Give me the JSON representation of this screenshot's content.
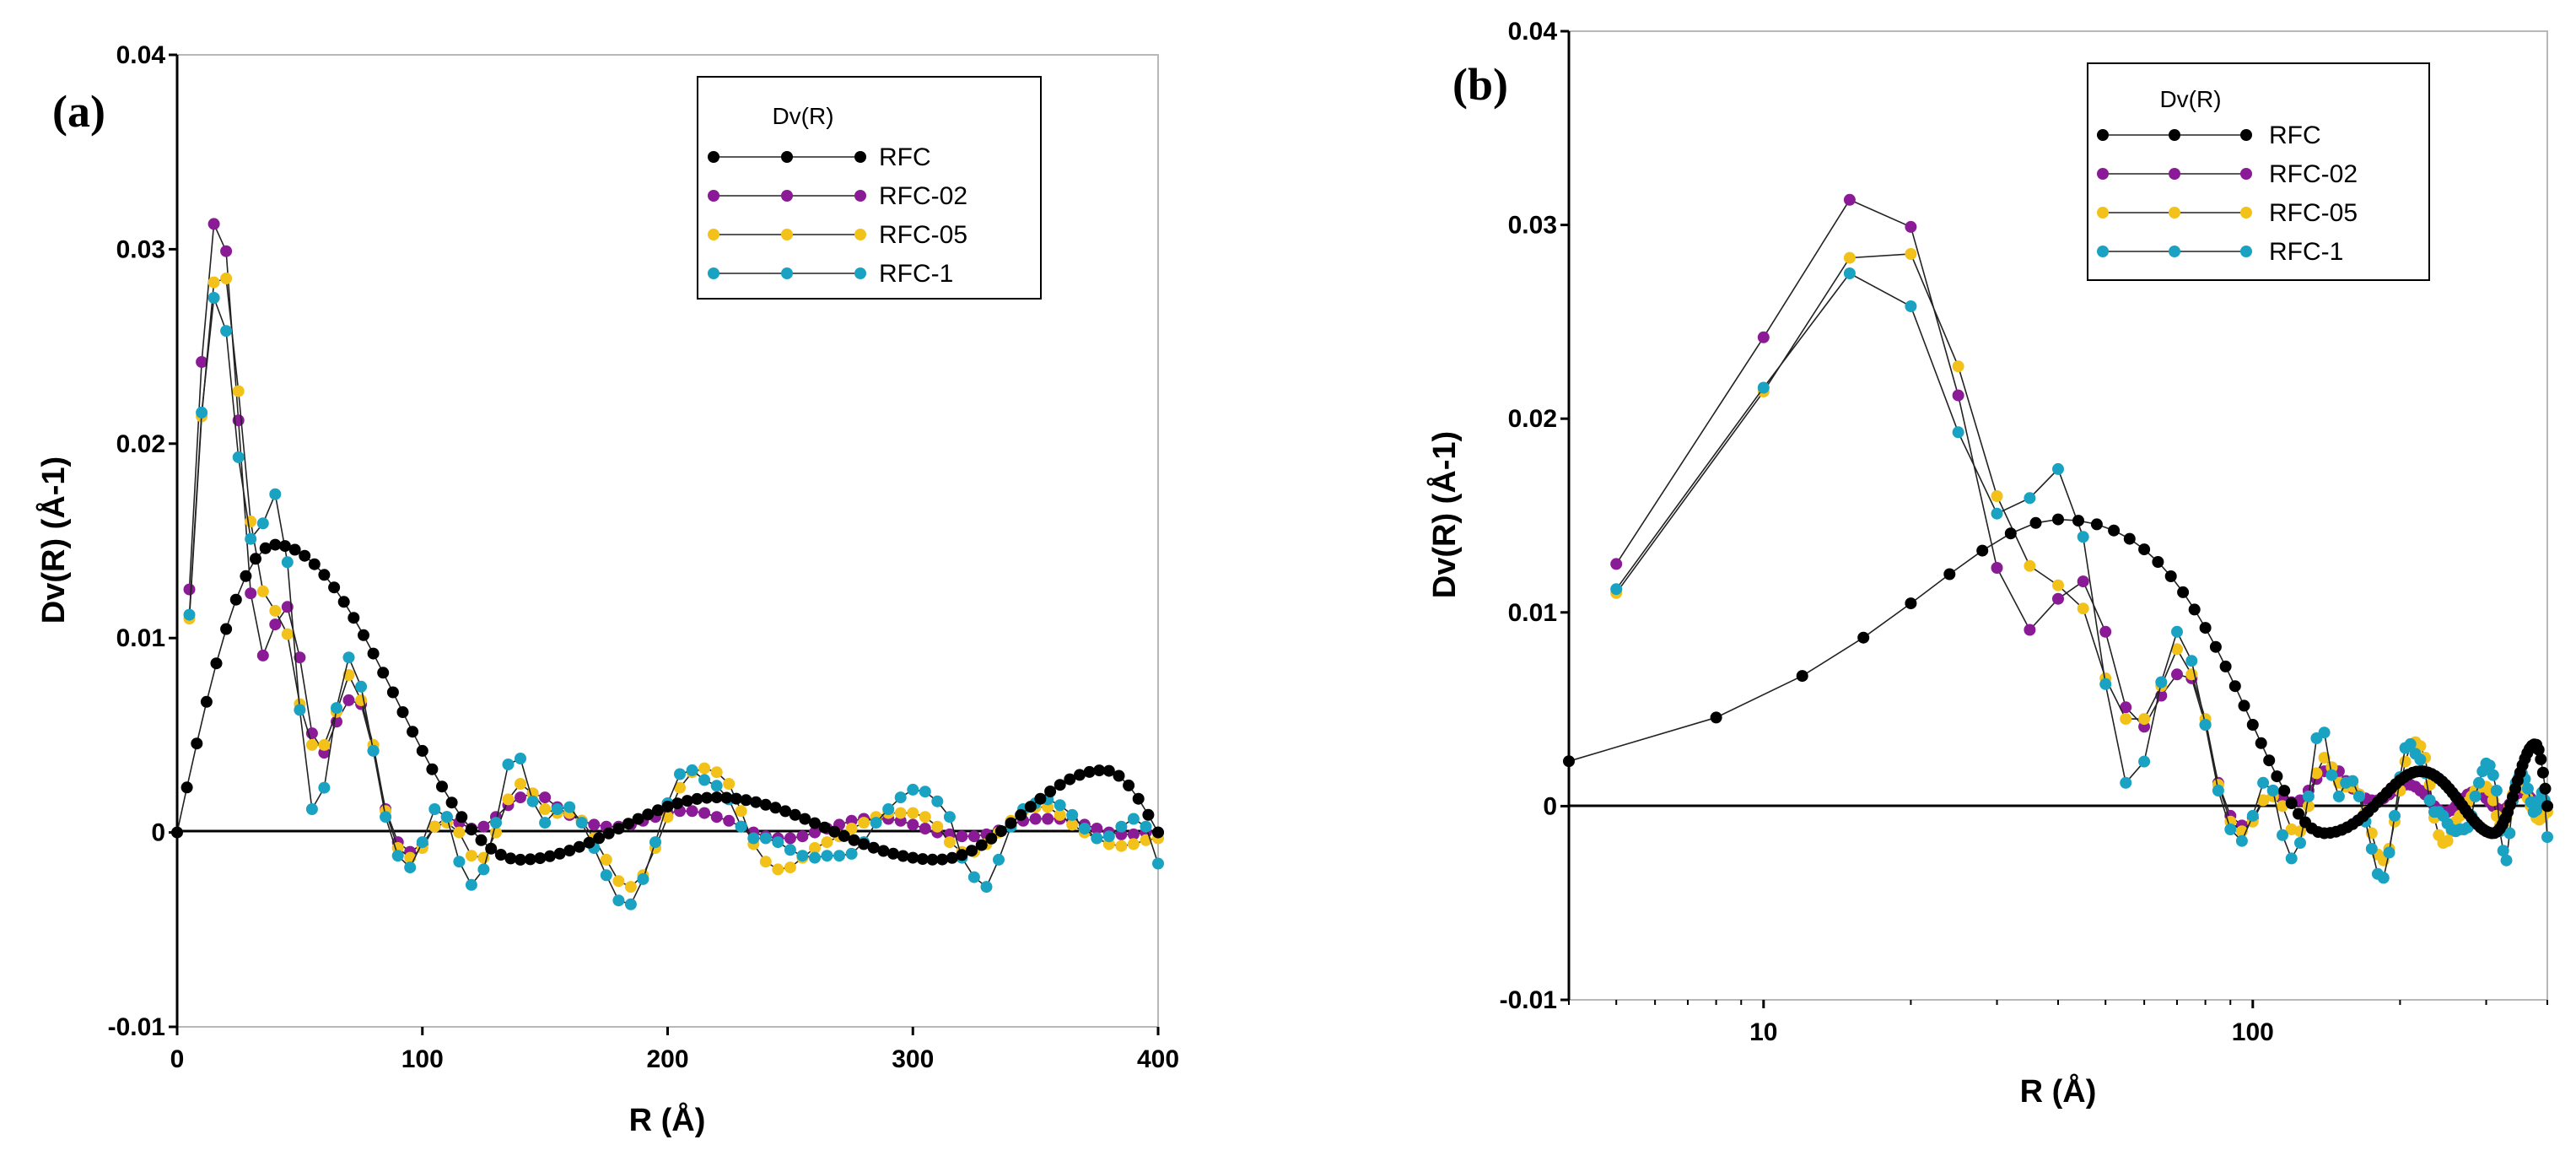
{
  "chart_data": [
    {
      "type": "line",
      "panel_label": "(a)",
      "xscale": "linear",
      "xlabel": "R (Å)",
      "ylabel": "Dv(R) (Å-1)",
      "xlim": [
        0,
        400
      ],
      "ylim": [
        -0.01,
        0.04
      ],
      "xticks": [
        0,
        100,
        200,
        300,
        400
      ],
      "xtick_labels": [
        "0",
        "100",
        "200",
        "300",
        "400"
      ],
      "yticks": [
        -0.01,
        0,
        0.01,
        0.02,
        0.03,
        0.04
      ],
      "ytick_labels": [
        "-0.01",
        "0",
        "0.01",
        "0.02",
        "0.03",
        "0.04"
      ],
      "grid": false,
      "legend": {
        "title": "Dv(R)",
        "position": "top-right"
      },
      "series": [
        {
          "name": "RFC",
          "color": "#000000",
          "generator": "rfc",
          "x_start": 0,
          "x_step": 4,
          "n": 101
        },
        {
          "name": "RFC-02",
          "color": "#8b1a96",
          "x": [
            5,
            10,
            15,
            20,
            25,
            30,
            35,
            40,
            45,
            50,
            55,
            60,
            65,
            70,
            75,
            80,
            85,
            90,
            95,
            100,
            105,
            110,
            115,
            120,
            125,
            130,
            135,
            140,
            145,
            150,
            155,
            160,
            165,
            170,
            175,
            180,
            185,
            190,
            195,
            200,
            205,
            210,
            215,
            220,
            225,
            230,
            235,
            240,
            245,
            250,
            255,
            260,
            265,
            270,
            275,
            280,
            285,
            290,
            295,
            300,
            305,
            310,
            315,
            320,
            325,
            330,
            335,
            340,
            345,
            350,
            355,
            360,
            365,
            370,
            375,
            380,
            385,
            390,
            395,
            400
          ],
          "y": [
            0.0125,
            0.0242,
            0.0313,
            0.0299,
            0.0212,
            0.0123,
            0.0091,
            0.0107,
            0.0116,
            0.009,
            0.0051,
            0.0041,
            0.0057,
            0.0068,
            0.0066,
            0.0042,
            0.0012,
            -0.0005,
            -0.001,
            -0.0006,
            0.0003,
            0.0008,
            0.0005,
            0.0002,
            0.0003,
            0.0008,
            0.0014,
            0.0018,
            0.002,
            0.0018,
            0.0013,
            0.0009,
            0.0006,
            0.0004,
            0.0003,
            0.0003,
            0.0004,
            0.0006,
            0.0008,
            0.001,
            0.0011,
            0.0011,
            0.001,
            0.0008,
            0.0006,
            0.0003,
            0,
            -0.0002,
            -0.0003,
            -0.0003,
            -0.0002,
            0,
            0.0002,
            0.0004,
            0.0006,
            0.0007,
            0.0007,
            0.0007,
            0.0006,
            0.0004,
            0.0002,
            0,
            -0.0001,
            -0.0002,
            -0.0002,
            -0.0001,
            0.0001,
            0.0004,
            0.0006,
            0.0007,
            0.0007,
            0.0007,
            0.0006,
            0.0004,
            0.0002,
            0,
            -0.0001,
            -0.0001,
            0,
            0
          ]
        },
        {
          "name": "RFC-05",
          "color": "#f2c21b",
          "x": [
            5,
            10,
            15,
            20,
            25,
            30,
            35,
            40,
            45,
            50,
            55,
            60,
            65,
            70,
            75,
            80,
            85,
            90,
            95,
            100,
            105,
            110,
            115,
            120,
            125,
            130,
            135,
            140,
            145,
            150,
            155,
            160,
            165,
            170,
            175,
            180,
            185,
            190,
            195,
            200,
            205,
            210,
            215,
            220,
            225,
            230,
            235,
            240,
            245,
            250,
            255,
            260,
            265,
            270,
            275,
            280,
            285,
            290,
            295,
            300,
            305,
            310,
            315,
            320,
            325,
            330,
            335,
            340,
            345,
            350,
            355,
            360,
            365,
            370,
            375,
            380,
            385,
            390,
            395,
            400
          ],
          "y": [
            0.011,
            0.0214,
            0.0283,
            0.0285,
            0.0227,
            0.016,
            0.0124,
            0.0114,
            0.0102,
            0.0066,
            0.0045,
            0.0045,
            0.0062,
            0.0081,
            0.0068,
            0.0045,
            0.0011,
            -0.0008,
            -0.0013,
            -0.0008,
            0.0003,
            0.0005,
            0,
            -0.0012,
            -0.0013,
            0,
            0.0017,
            0.0025,
            0.002,
            0.0012,
            0.001,
            0.001,
            0.0006,
            -0.0003,
            -0.0014,
            -0.0025,
            -0.0028,
            -0.0022,
            -0.0008,
            0.0008,
            0.0023,
            0.0031,
            0.0033,
            0.0031,
            0.0025,
            0.0011,
            -0.0006,
            -0.0015,
            -0.0019,
            -0.0018,
            -0.0013,
            -0.0008,
            -0.0005,
            -0.0002,
            0.0002,
            0.0005,
            0.0008,
            0.001,
            0.001,
            0.001,
            0.0008,
            0.0003,
            -0.0005,
            -0.001,
            -0.001,
            -0.0006,
            0,
            0.0006,
            0.0011,
            0.0013,
            0.0013,
            0.0009,
            0.0004,
            0,
            -0.0003,
            -0.0006,
            -0.0007,
            -0.0006,
            -0.0004,
            -0.0003
          ]
        },
        {
          "name": "RFC-1",
          "color": "#1aa2c2",
          "x": [
            5,
            10,
            15,
            20,
            25,
            30,
            35,
            40,
            45,
            50,
            55,
            60,
            65,
            70,
            75,
            80,
            85,
            90,
            95,
            100,
            105,
            110,
            115,
            120,
            125,
            130,
            135,
            140,
            145,
            150,
            155,
            160,
            165,
            170,
            175,
            180,
            185,
            190,
            195,
            200,
            205,
            210,
            215,
            220,
            225,
            230,
            235,
            240,
            245,
            250,
            255,
            260,
            265,
            270,
            275,
            280,
            285,
            290,
            295,
            300,
            305,
            310,
            315,
            320,
            325,
            330,
            335,
            340,
            345,
            350,
            355,
            360,
            365,
            370,
            375,
            380,
            385,
            390,
            395,
            400
          ],
          "y": [
            0.0112,
            0.0216,
            0.0275,
            0.0258,
            0.0193,
            0.0151,
            0.0159,
            0.0174,
            0.0139,
            0.0063,
            0.0012,
            0.0023,
            0.0064,
            0.009,
            0.0075,
            0.0042,
            0.0008,
            -0.0012,
            -0.0018,
            -0.0005,
            0.0012,
            0.0008,
            -0.0015,
            -0.0027,
            -0.0019,
            0.0005,
            0.0035,
            0.0038,
            0.0016,
            0.0005,
            0.0012,
            0.0013,
            0.0005,
            -0.0008,
            -0.0022,
            -0.0035,
            -0.0037,
            -0.0024,
            -0.0005,
            0.0015,
            0.003,
            0.0032,
            0.0027,
            0.0024,
            0.0017,
            0.0003,
            -0.0003,
            -0.0003,
            -0.0005,
            -0.0009,
            -0.0012,
            -0.0013,
            -0.0012,
            -0.0012,
            -0.0011,
            -0.0005,
            0.0005,
            0.0012,
            0.0018,
            0.0022,
            0.0021,
            0.0016,
            0.0008,
            -0.0013,
            -0.0023,
            -0.0028,
            -0.0014,
            0.0003,
            0.0012,
            0.0015,
            0.0017,
            0.0014,
            0.0009,
            0.0002,
            -0.0003,
            -0.0002,
            0.0003,
            0.0007,
            0.0003,
            -0.0016
          ]
        }
      ]
    },
    {
      "type": "line",
      "panel_label": "(b)",
      "xscale": "log",
      "xlabel": "R (Å)",
      "ylabel": "Dv(R) (Å-1)",
      "xlim": [
        4,
        400
      ],
      "ylim": [
        -0.01,
        0.04
      ],
      "xticks": [
        10,
        100
      ],
      "xtick_labels": [
        "10",
        "100"
      ],
      "yticks": [
        -0.01,
        0,
        0.01,
        0.02,
        0.03,
        0.04
      ],
      "ytick_labels": [
        "-0.01",
        "0",
        "0.01",
        "0.02",
        "0.03",
        "0.04"
      ],
      "grid": false,
      "legend": {
        "title": "Dv(R)",
        "position": "top-right"
      },
      "series": [
        {
          "name": "RFC",
          "color": "#000000",
          "generator": "rfc",
          "x_start": 4,
          "x_step": 4,
          "n": 100
        },
        {
          "name": "RFC-02",
          "color": "#8b1a96",
          "same_as_panel_a": true
        },
        {
          "name": "RFC-05",
          "color": "#f2c21b",
          "same_as_panel_a": true
        },
        {
          "name": "RFC-1",
          "color": "#1aa2c2",
          "same_as_panel_a": true
        }
      ]
    }
  ]
}
